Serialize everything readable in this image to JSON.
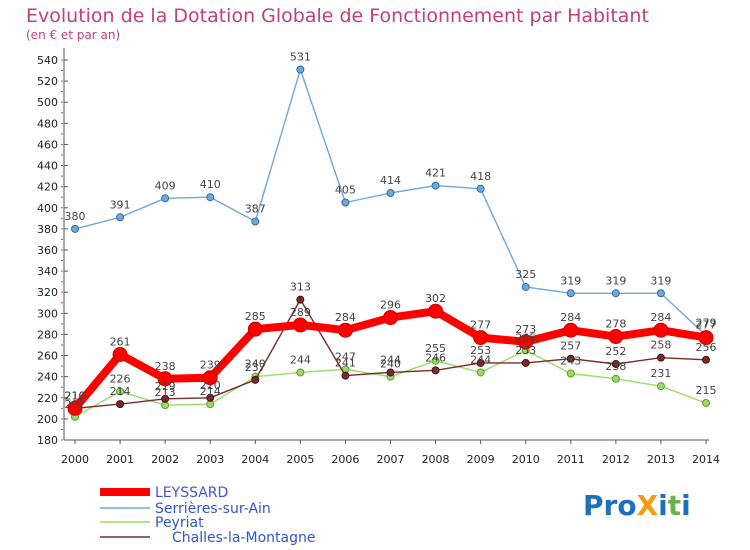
{
  "chart_data": {
    "type": "line",
    "title": "Evolution de la Dotation Globale de Fonctionnement par Habitant",
    "subtitle": "(en € et par an)",
    "x": [
      "2000",
      "2001",
      "2002",
      "2003",
      "2004",
      "2005",
      "2006",
      "2007",
      "2008",
      "2009",
      "2010",
      "2011",
      "2012",
      "2013",
      "2014"
    ],
    "ylim": [
      180,
      540
    ],
    "yticks": [
      180,
      200,
      220,
      240,
      260,
      280,
      300,
      320,
      340,
      360,
      380,
      400,
      420,
      440,
      460,
      480,
      500,
      520,
      540
    ],
    "grid": false,
    "legend_position": "bottom-left",
    "series": [
      {
        "name": "LEYSSARD",
        "color": "#ff0000",
        "values": [
          210,
          261,
          238,
          239,
          285,
          289,
          284,
          296,
          302,
          277,
          273,
          284,
          278,
          284,
          277
        ]
      },
      {
        "name": "Serrières-sur-Ain",
        "color": "#6fa8dc",
        "values": [
          380,
          391,
          409,
          410,
          387,
          531,
          405,
          414,
          421,
          418,
          325,
          319,
          319,
          319,
          279
        ]
      },
      {
        "name": "Peyriat",
        "color": "#99dd66",
        "values": [
          202,
          226,
          213,
          214,
          240,
          244,
          247,
          240,
          255,
          244,
          265,
          243,
          238,
          231,
          215
        ]
      },
      {
        "name": "Challes-la-Montagne",
        "color": "#7a2a2a",
        "values": [
          210,
          214,
          219,
          220,
          237,
          313,
          241,
          244,
          246,
          253,
          253,
          257,
          252,
          258,
          256
        ]
      }
    ]
  },
  "logo": {
    "text": "ProXiti"
  }
}
